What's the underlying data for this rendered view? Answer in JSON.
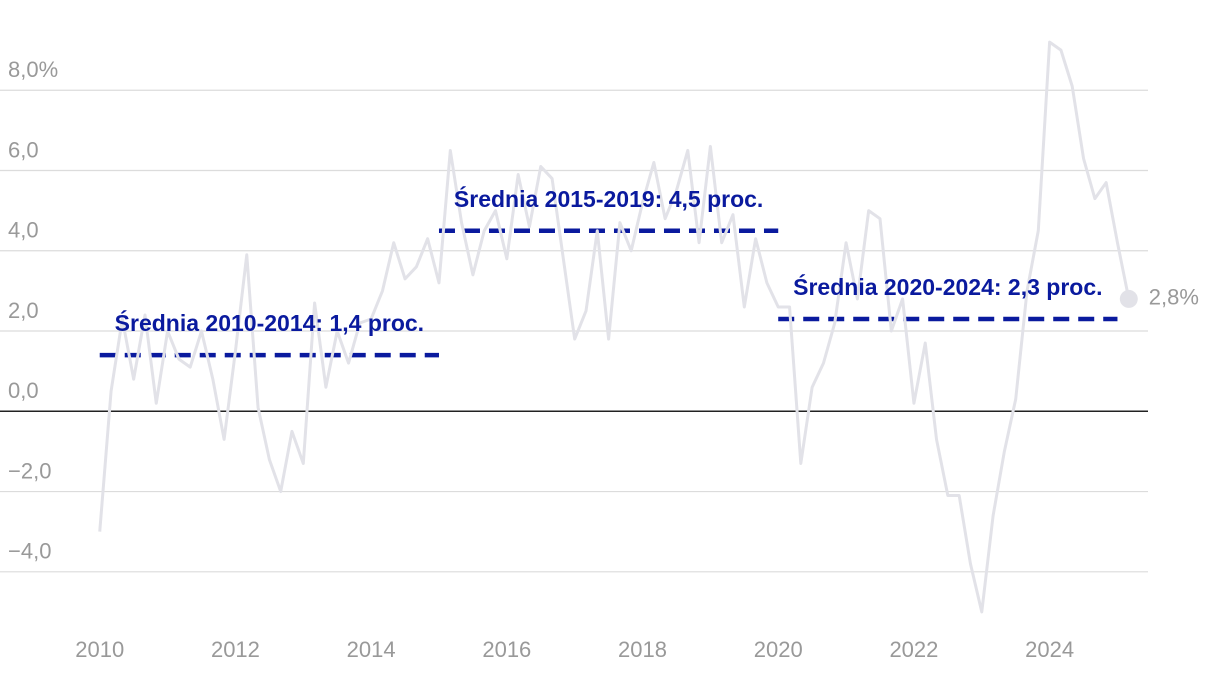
{
  "chart_data": {
    "type": "line",
    "x": [
      2010.0,
      2010.167,
      2010.333,
      2010.5,
      2010.667,
      2010.833,
      2011.0,
      2011.167,
      2011.333,
      2011.5,
      2011.667,
      2011.833,
      2012.0,
      2012.167,
      2012.333,
      2012.5,
      2012.667,
      2012.833,
      2013.0,
      2013.167,
      2013.333,
      2013.5,
      2013.667,
      2013.833,
      2014.0,
      2014.167,
      2014.333,
      2014.5,
      2014.667,
      2014.833,
      2015.0,
      2015.167,
      2015.333,
      2015.5,
      2015.667,
      2015.833,
      2016.0,
      2016.167,
      2016.333,
      2016.5,
      2016.667,
      2016.833,
      2017.0,
      2017.167,
      2017.333,
      2017.5,
      2017.667,
      2017.833,
      2018.0,
      2018.167,
      2018.333,
      2018.5,
      2018.667,
      2018.833,
      2019.0,
      2019.167,
      2019.333,
      2019.5,
      2019.667,
      2019.833,
      2020.0,
      2020.167,
      2020.333,
      2020.5,
      2020.667,
      2020.833,
      2021.0,
      2021.167,
      2021.333,
      2021.5,
      2021.667,
      2021.833,
      2022.0,
      2022.167,
      2022.333,
      2022.5,
      2022.667,
      2022.833,
      2023.0,
      2023.167,
      2023.333,
      2023.5,
      2023.667,
      2023.833,
      2024.0,
      2024.167,
      2024.333,
      2024.5,
      2024.667,
      2024.833,
      2025.0,
      2025.167
    ],
    "series": [
      {
        "color": "#e2e2e8",
        "values": [
          -3.0,
          0.5,
          2.3,
          0.8,
          2.4,
          0.2,
          2.0,
          1.3,
          1.1,
          2.0,
          0.8,
          -0.7,
          1.5,
          3.9,
          0.1,
          -1.2,
          -2.0,
          -0.5,
          -1.3,
          2.7,
          0.6,
          2.0,
          1.2,
          2.2,
          2.3,
          3.0,
          4.2,
          3.3,
          3.6,
          4.3,
          3.2,
          6.5,
          4.7,
          3.4,
          4.5,
          5.0,
          3.8,
          5.9,
          4.6,
          6.1,
          5.8,
          3.8,
          1.8,
          2.5,
          4.5,
          1.8,
          4.7,
          4.0,
          5.2,
          6.2,
          4.8,
          5.5,
          6.5,
          4.2,
          6.6,
          4.2,
          4.9,
          2.6,
          4.3,
          3.2,
          2.6,
          2.6,
          -1.3,
          0.6,
          1.2,
          2.2,
          4.2,
          2.8,
          5.0,
          4.8,
          2.0,
          2.8,
          0.2,
          1.7,
          -0.7,
          -2.1,
          -2.1,
          -3.8,
          -5.0,
          -2.6,
          -1.0,
          0.3,
          3.0,
          4.5,
          9.2,
          9.0,
          8.1,
          6.3,
          5.3,
          5.7,
          4.2,
          2.8
        ],
        "end_label": "2,8%"
      }
    ],
    "averages": [
      {
        "label": "Średnia 2010-2014: 1,4 proc.",
        "value": 1.4,
        "start": 2010,
        "end": 2015
      },
      {
        "label": "Średnia 2015-2019: 4,5 proc.",
        "value": 4.5,
        "start": 2015,
        "end": 2020
      },
      {
        "label": "Średnia 2020-2024: 2,3 proc.",
        "value": 2.3,
        "start": 2020,
        "end": 2025
      }
    ],
    "average_color": "#0a1a9e",
    "xlim": [
      2008.53,
      2025.45
    ],
    "xticks": [
      2010,
      2012,
      2014,
      2016,
      2018,
      2020,
      2022,
      2024
    ],
    "ylim": [
      -5.5,
      10
    ],
    "yticks": [
      {
        "value": -4,
        "label": "−4,0"
      },
      {
        "value": -2,
        "label": "−2,0"
      },
      {
        "value": 0,
        "label": "0,0"
      },
      {
        "value": 2,
        "label": "2,0"
      },
      {
        "value": 4,
        "label": "4,0"
      },
      {
        "value": 6,
        "label": "6,0"
      },
      {
        "value": 8,
        "label": "8,0%"
      }
    ],
    "grid": true
  }
}
